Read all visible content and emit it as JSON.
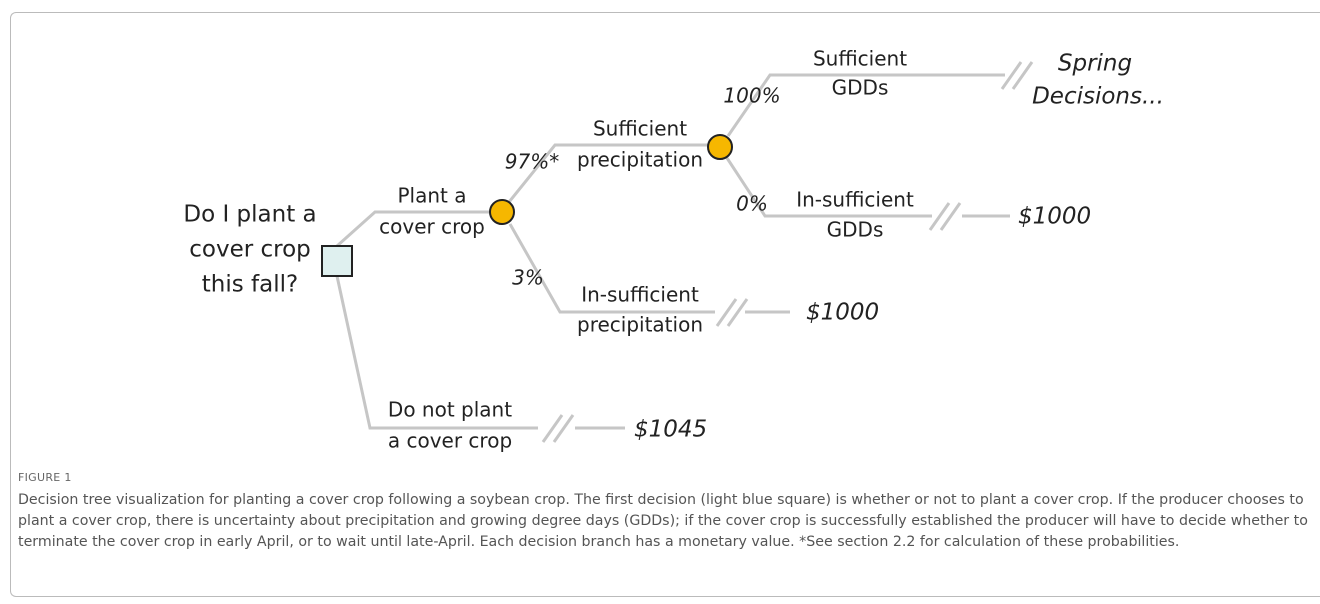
{
  "tree": {
    "decision": {
      "label": [
        "Do I plant a",
        "cover crop",
        "this fall?"
      ]
    },
    "plant": {
      "label": [
        "Plant a",
        "cover crop"
      ]
    },
    "sufficient_precipitation": {
      "label": [
        "Sufficient",
        "precipitation"
      ],
      "probability": "97%*"
    },
    "insufficient_precipitation": {
      "label": [
        "In-sufficient",
        "precipitation"
      ],
      "probability": "3%",
      "value": "$1000"
    },
    "sufficient_gdds": {
      "label": [
        "Sufficient",
        "GDDs"
      ],
      "probability": "100%",
      "value": [
        "Spring",
        "Decisions..."
      ]
    },
    "insufficient_gdds": {
      "label": [
        "In-sufficient",
        "GDDs"
      ],
      "probability": "0%",
      "value": "$1000"
    },
    "do_not_plant": {
      "label": [
        "Do not plant",
        "a cover crop"
      ],
      "value": "$1045"
    }
  },
  "caption": {
    "number": "FIGURE 1",
    "text": "Decision tree visualization for planting a cover crop following a soybean crop. The first decision (light blue square) is whether or not to plant a cover crop. If the producer chooses to plant a cover crop, there is uncertainty about precipitation and growing degree days (GDDs); if the cover crop is successfully established the producer will have to decide whether to terminate the cover crop in early April, or to wait until late-April. Each decision branch has a monetary value. *See section 2.2 for calculation of these probabilities."
  }
}
